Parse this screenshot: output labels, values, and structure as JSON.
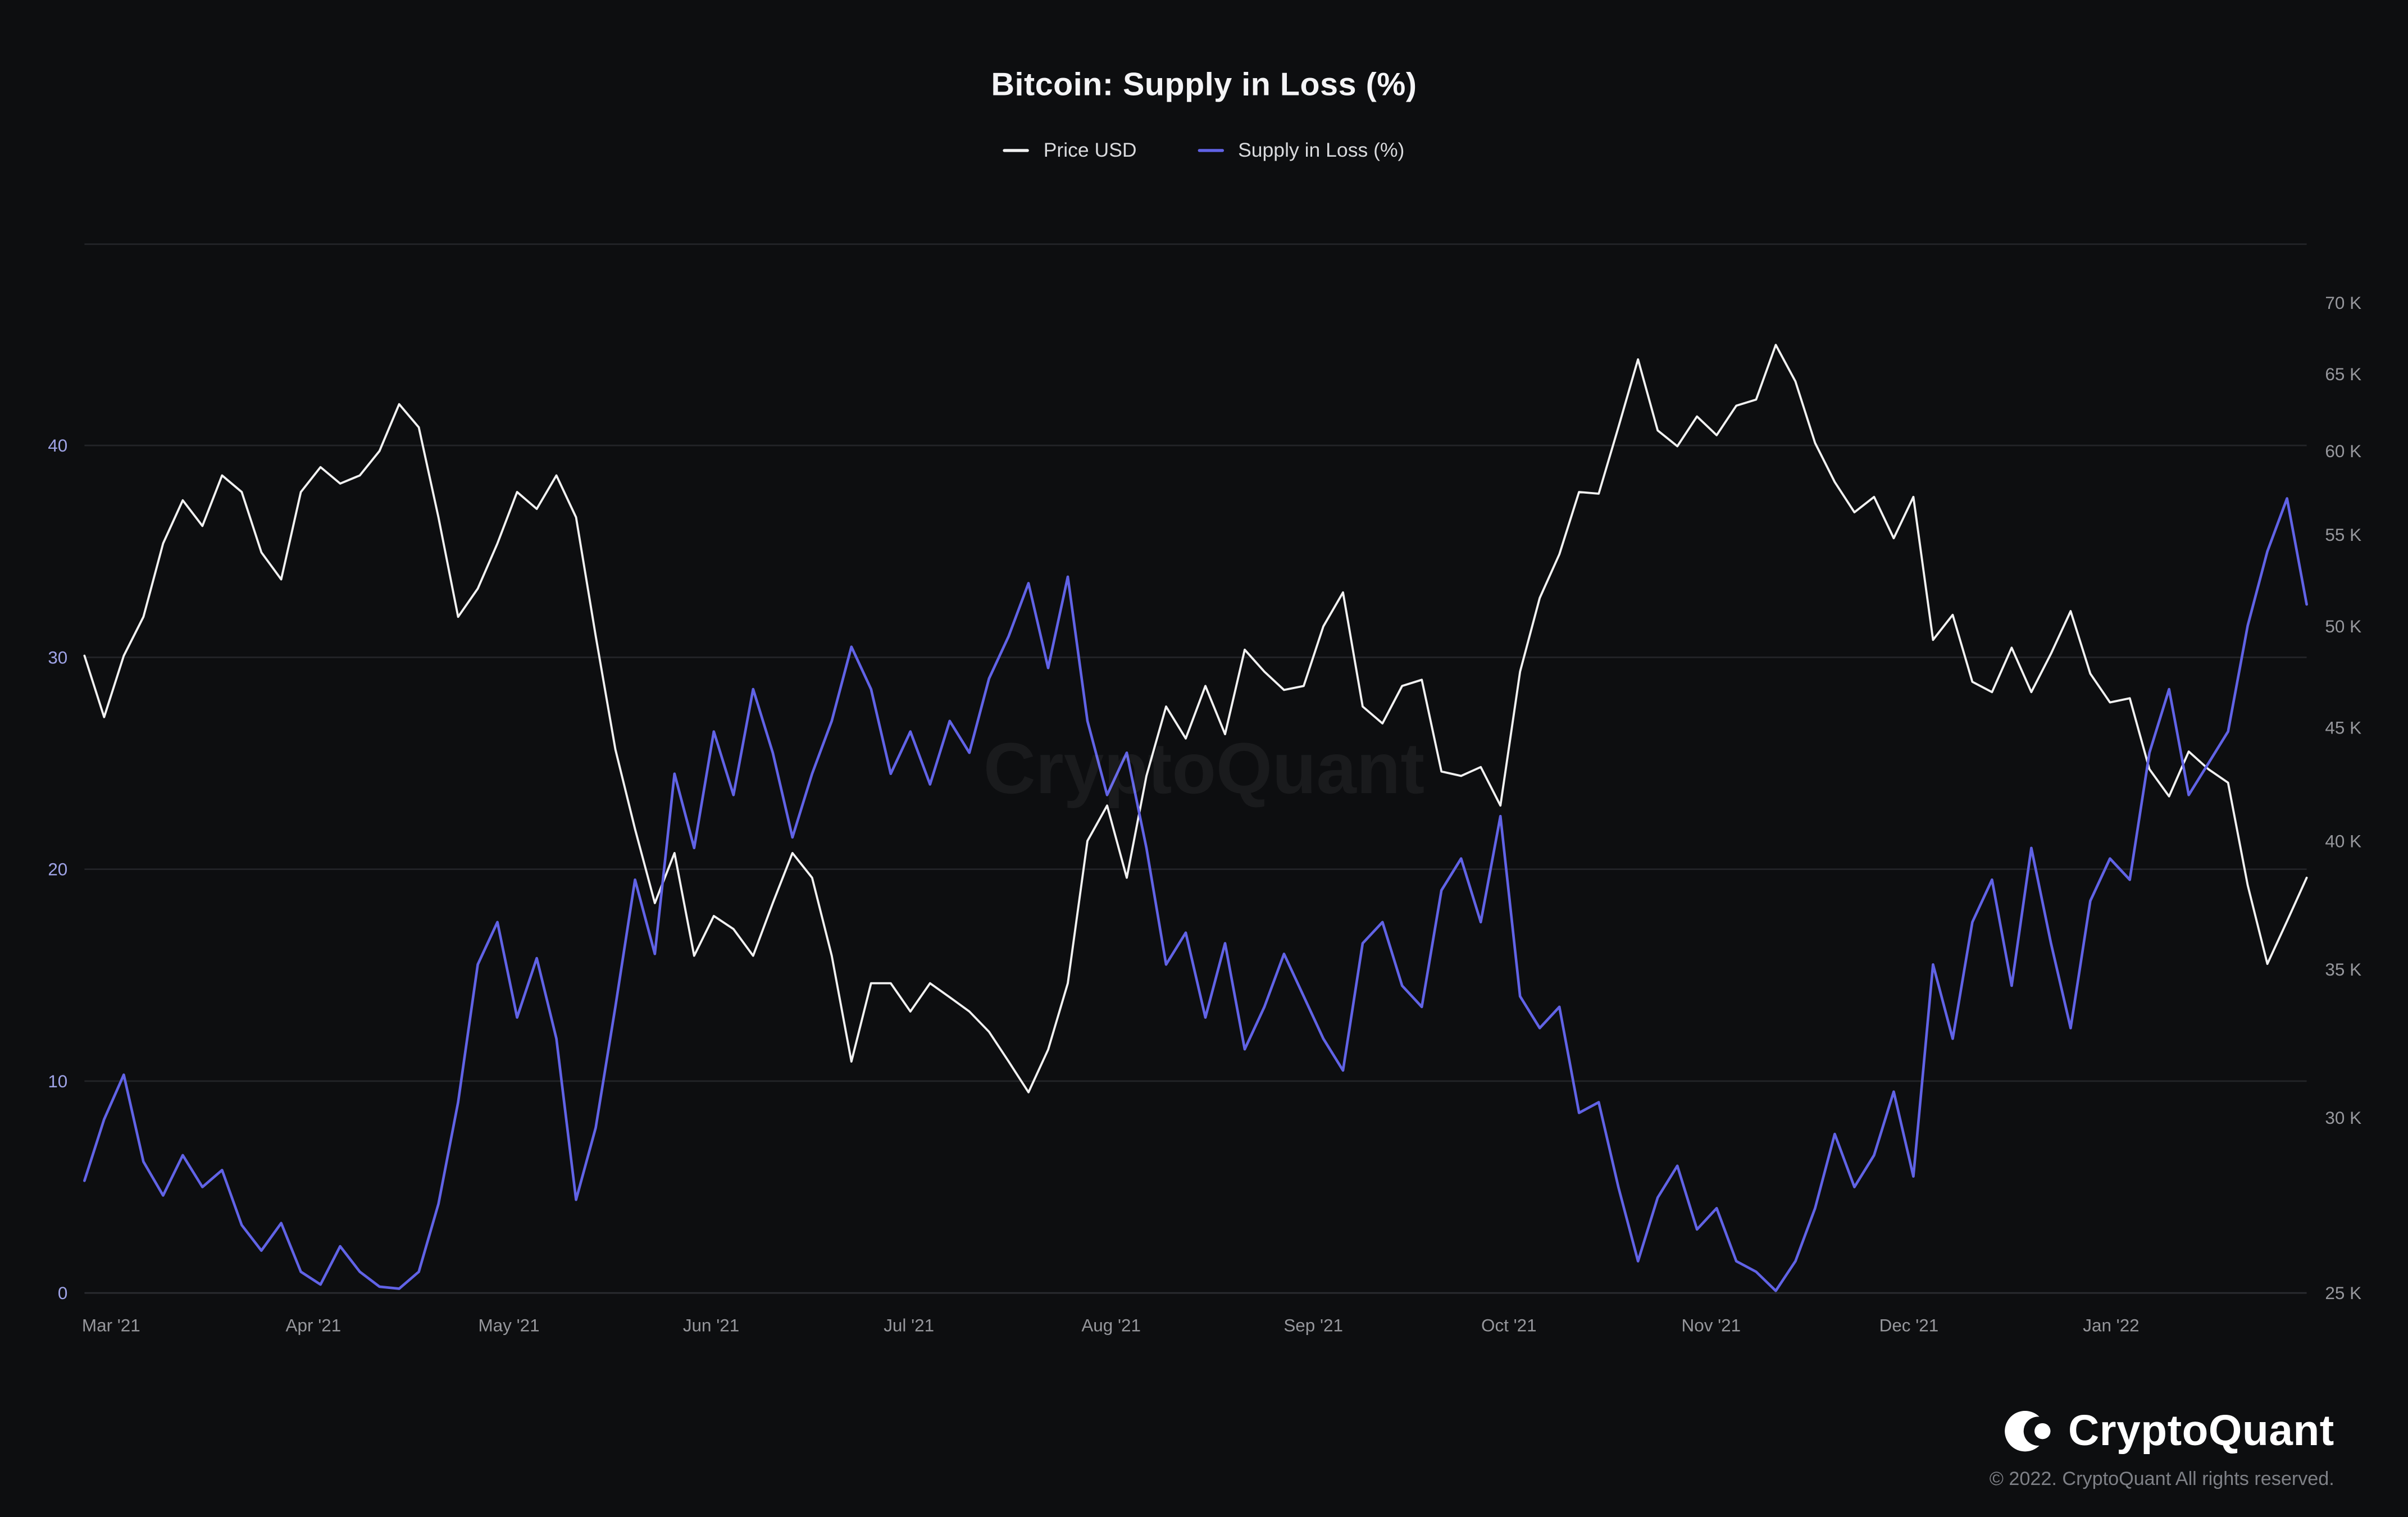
{
  "chart_data": {
    "type": "line",
    "title": "Bitcoin: Supply in Loss (%)",
    "watermark": "CryptoQuant",
    "grid": true,
    "legend_position": "top-center",
    "x_ticks": [
      {
        "label": "Mar '21",
        "f": 0.012
      },
      {
        "label": "Apr '21",
        "f": 0.103
      },
      {
        "label": "May '21",
        "f": 0.191
      },
      {
        "label": "Jun '21",
        "f": 0.282
      },
      {
        "label": "Jul '21",
        "f": 0.371
      },
      {
        "label": "Aug '21",
        "f": 0.462
      },
      {
        "label": "Sep '21",
        "f": 0.553
      },
      {
        "label": "Oct '21",
        "f": 0.641
      },
      {
        "label": "Nov '21",
        "f": 0.732
      },
      {
        "label": "Dec '21",
        "f": 0.821
      },
      {
        "label": "Jan '22",
        "f": 0.912
      }
    ],
    "left_axis": {
      "title": "Supply in Loss (%)",
      "ticks": [
        0,
        10,
        20,
        30,
        40
      ],
      "min": 0,
      "max": 49.5,
      "scale": "linear",
      "label_color": "#9fa3e6"
    },
    "right_axis": {
      "title": "Price USD",
      "unit": "K",
      "tick_values": [
        25,
        30,
        35,
        40,
        45,
        50,
        55,
        60,
        65,
        70
      ],
      "tick_labels": [
        "25 K",
        "30 K",
        "35 K",
        "40 K",
        "45 K",
        "50 K",
        "55 K",
        "60 K",
        "65 K",
        "70 K"
      ],
      "min": 25,
      "max": 74.4,
      "scale": "log",
      "label_color": "#96979c"
    },
    "series": [
      {
        "name": "Price USD",
        "axis": "right",
        "color": "#f2f2f2",
        "unit": "K USD",
        "values": [
          48.5,
          45.5,
          48.5,
          50.5,
          54.5,
          57.0,
          55.5,
          58.5,
          57.5,
          54.0,
          52.5,
          57.5,
          59.0,
          58.0,
          58.5,
          60.0,
          63.0,
          61.5,
          56.0,
          50.5,
          52.0,
          54.5,
          57.5,
          56.5,
          58.5,
          56.0,
          49.5,
          44.0,
          40.5,
          37.5,
          39.5,
          35.5,
          37.0,
          36.5,
          35.5,
          37.5,
          39.5,
          38.5,
          35.5,
          31.8,
          34.5,
          34.5,
          33.5,
          34.5,
          34.0,
          33.5,
          32.8,
          31.8,
          30.8,
          32.2,
          34.5,
          40.0,
          41.5,
          38.5,
          42.8,
          46.0,
          44.5,
          47.0,
          44.7,
          48.8,
          47.7,
          46.8,
          47.0,
          50.0,
          51.8,
          46.0,
          45.2,
          47.0,
          47.3,
          43.0,
          42.8,
          43.2,
          41.5,
          47.7,
          51.5,
          53.9,
          57.5,
          57.4,
          61.5,
          66.0,
          61.3,
          60.3,
          62.2,
          61.0,
          62.9,
          63.3,
          67.0,
          64.5,
          60.5,
          58.1,
          56.3,
          57.2,
          54.8,
          57.2,
          49.3,
          50.6,
          47.2,
          46.7,
          48.9,
          46.7,
          48.6,
          50.8,
          47.6,
          46.2,
          46.4,
          43.1,
          41.9,
          43.9,
          43.1,
          42.5,
          38.2,
          35.2,
          36.8,
          38.5
        ]
      },
      {
        "name": "Supply in Loss (%)",
        "axis": "left",
        "color": "#6163e6",
        "unit": "%",
        "values": [
          5.3,
          8.2,
          10.3,
          6.2,
          4.6,
          6.5,
          5.0,
          5.8,
          3.2,
          2.0,
          3.3,
          1.0,
          0.4,
          2.2,
          1.0,
          0.3,
          0.2,
          1.0,
          4.2,
          9.0,
          15.5,
          17.5,
          13.0,
          15.8,
          12.0,
          4.4,
          7.8,
          13.5,
          19.5,
          16.0,
          24.5,
          21.0,
          26.5,
          23.5,
          28.5,
          25.5,
          21.5,
          24.5,
          27.0,
          30.5,
          28.5,
          24.5,
          26.5,
          24.0,
          27.0,
          25.5,
          29.0,
          31.0,
          33.5,
          29.5,
          33.8,
          27.0,
          23.5,
          25.5,
          21.0,
          15.5,
          17.0,
          13.0,
          16.5,
          11.5,
          13.5,
          16.0,
          14.0,
          12.0,
          10.5,
          16.5,
          17.5,
          14.5,
          13.5,
          19.0,
          20.5,
          17.5,
          22.5,
          14.0,
          12.5,
          13.5,
          8.5,
          9.0,
          5.0,
          1.5,
          4.5,
          6.0,
          3.0,
          4.0,
          1.5,
          1.0,
          0.1,
          1.5,
          4.0,
          7.5,
          5.0,
          6.5,
          9.5,
          5.5,
          15.5,
          12.0,
          17.5,
          19.5,
          14.5,
          21.0,
          16.5,
          12.5,
          18.5,
          20.5,
          19.5,
          25.5,
          28.5,
          23.5,
          25.0,
          26.5,
          31.5,
          35.0,
          37.5,
          32.5
        ]
      }
    ]
  },
  "footer": {
    "brand": "CryptoQuant",
    "copyright": "© 2022. CryptoQuant All rights reserved."
  }
}
